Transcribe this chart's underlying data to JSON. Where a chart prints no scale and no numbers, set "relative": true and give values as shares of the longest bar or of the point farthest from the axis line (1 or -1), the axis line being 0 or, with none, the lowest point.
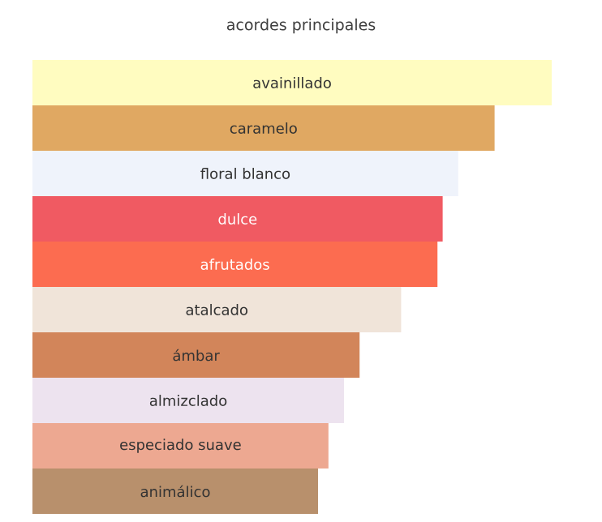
{
  "chart_data": {
    "type": "bar",
    "orientation": "horizontal",
    "relative": true,
    "title": "acordes principales",
    "categories": [
      "avainillado",
      "caramelo",
      "floral blanco",
      "dulce",
      "afrutados",
      "atalcado",
      "ámbar",
      "almizclado",
      "especiado suave",
      "animálico"
    ],
    "values": [
      1,
      0.89,
      0.82,
      0.79,
      0.78,
      0.71,
      0.63,
      0.6,
      0.57,
      0.55
    ],
    "colors": [
      "#fffcc0",
      "#e0a862",
      "#eff3fb",
      "#f05a62",
      "#fc6c50",
      "#f0e4d9",
      "#d2855a",
      "#ede3ef",
      "#eda891",
      "#b8906c"
    ]
  }
}
